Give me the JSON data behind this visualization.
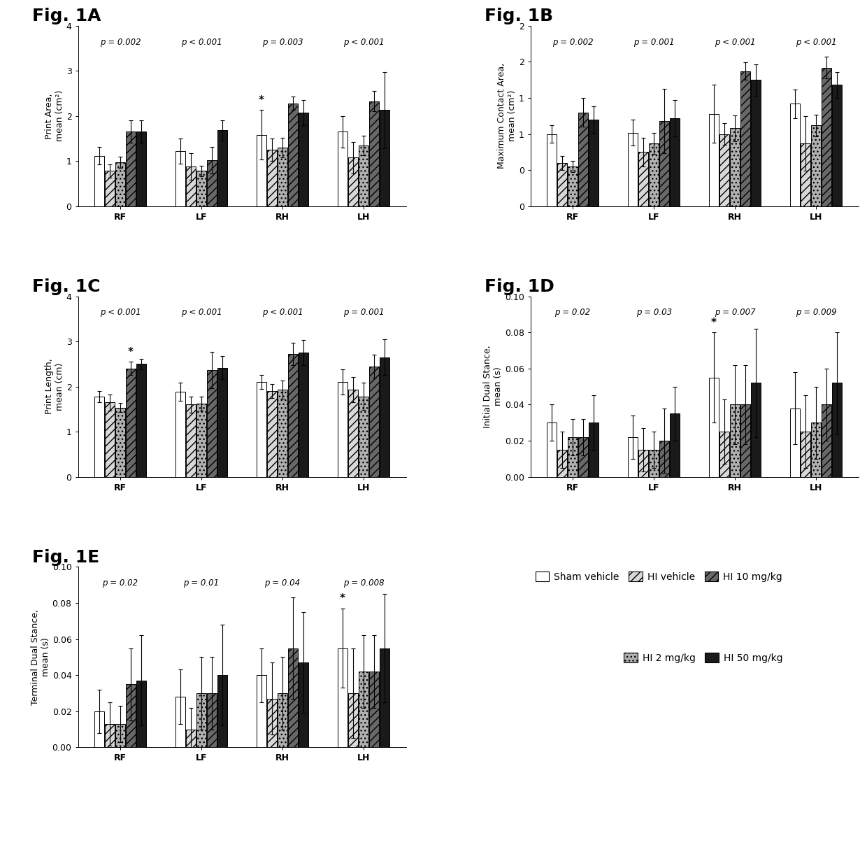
{
  "panels": {
    "1A": {
      "title": "Fig. 1A",
      "ylabel": "Print Area,\nmean (cm²)",
      "ylim": [
        0,
        4
      ],
      "yticks": [
        0,
        1,
        2,
        3,
        4
      ],
      "pvalues": [
        "p = 0.002",
        "p < 0.001",
        "p = 0.003",
        "p < 0.001"
      ],
      "groups": [
        "RF",
        "LF",
        "RH",
        "LH"
      ],
      "means": [
        [
          1.12,
          0.78,
          0.97,
          1.65,
          1.65
        ],
        [
          1.22,
          0.88,
          0.78,
          1.02,
          1.68
        ],
        [
          1.58,
          1.25,
          1.3,
          2.28,
          2.07
        ],
        [
          1.65,
          1.08,
          1.35,
          2.33,
          2.13
        ]
      ],
      "errors": [
        [
          0.2,
          0.15,
          0.12,
          0.25,
          0.25
        ],
        [
          0.28,
          0.3,
          0.12,
          0.3,
          0.22
        ],
        [
          0.55,
          0.25,
          0.22,
          0.15,
          0.28
        ],
        [
          0.35,
          0.35,
          0.22,
          0.22,
          0.85
        ]
      ],
      "star_group_idx": 2,
      "star_bar_idx": 0
    },
    "1B": {
      "title": "Fig. 1B",
      "ylabel": "Maximum Contact Area,\nmean (cm²)",
      "ylim": [
        0,
        2.5
      ],
      "yticks": [
        0.0,
        0.5,
        1.0,
        1.5,
        2.0,
        2.5
      ],
      "pvalues": [
        "p = 0.002",
        "p = 0.001",
        "p < 0.001",
        "p < 0.001"
      ],
      "groups": [
        "RF",
        "LF",
        "RH",
        "LH"
      ],
      "means": [
        [
          1.0,
          0.6,
          0.55,
          1.3,
          1.2
        ],
        [
          1.02,
          0.75,
          0.87,
          1.18,
          1.22
        ],
        [
          1.28,
          1.0,
          1.08,
          1.87,
          1.75
        ],
        [
          1.42,
          0.87,
          1.12,
          1.92,
          1.68
        ]
      ],
      "errors": [
        [
          0.12,
          0.1,
          0.08,
          0.2,
          0.18
        ],
        [
          0.18,
          0.2,
          0.15,
          0.45,
          0.25
        ],
        [
          0.4,
          0.15,
          0.18,
          0.12,
          0.22
        ],
        [
          0.2,
          0.38,
          0.15,
          0.15,
          0.18
        ]
      ],
      "star_group_idx": -1,
      "star_bar_idx": -1
    },
    "1C": {
      "title": "Fig. 1C",
      "ylabel": "Print Length,\nmean (cm)",
      "ylim": [
        0,
        4
      ],
      "yticks": [
        0,
        1,
        2,
        3,
        4
      ],
      "pvalues": [
        "p < 0.001",
        "p < 0.001",
        "p < 0.001",
        "p = 0.001"
      ],
      "groups": [
        "RF",
        "LF",
        "RH",
        "LH"
      ],
      "means": [
        [
          1.78,
          1.65,
          1.53,
          2.4,
          2.5
        ],
        [
          1.88,
          1.6,
          1.62,
          2.37,
          2.42
        ],
        [
          2.1,
          1.9,
          1.93,
          2.72,
          2.75
        ],
        [
          2.1,
          1.93,
          1.78,
          2.45,
          2.65
        ]
      ],
      "errors": [
        [
          0.12,
          0.18,
          0.1,
          0.15,
          0.12
        ],
        [
          0.2,
          0.18,
          0.15,
          0.4,
          0.25
        ],
        [
          0.15,
          0.15,
          0.2,
          0.25,
          0.28
        ],
        [
          0.28,
          0.28,
          0.3,
          0.25,
          0.4
        ]
      ],
      "star_group_idx": 0,
      "star_bar_idx": 3
    },
    "1D": {
      "title": "Fig. 1D",
      "ylabel": "Initial Dual Stance,\nmean (s)",
      "ylim": [
        0,
        0.1
      ],
      "yticks": [
        0.0,
        0.02,
        0.04,
        0.06,
        0.08,
        0.1
      ],
      "pvalues": [
        "p = 0.02",
        "p = 0.03",
        "p = 0.007",
        "p = 0.009"
      ],
      "groups": [
        "RF",
        "LF",
        "RH",
        "LH"
      ],
      "means": [
        [
          0.03,
          0.015,
          0.022,
          0.022,
          0.03
        ],
        [
          0.022,
          0.015,
          0.015,
          0.02,
          0.035
        ],
        [
          0.055,
          0.025,
          0.04,
          0.04,
          0.052
        ],
        [
          0.038,
          0.025,
          0.03,
          0.04,
          0.052
        ]
      ],
      "errors": [
        [
          0.01,
          0.01,
          0.01,
          0.01,
          0.015
        ],
        [
          0.012,
          0.012,
          0.01,
          0.018,
          0.015
        ],
        [
          0.025,
          0.018,
          0.022,
          0.022,
          0.03
        ],
        [
          0.02,
          0.02,
          0.02,
          0.02,
          0.028
        ]
      ],
      "star_group_idx": 2,
      "star_bar_idx": 0
    },
    "1E": {
      "title": "Fig. 1E",
      "ylabel": "Terminal Dual Stance,\nmean (s)",
      "ylim": [
        0,
        0.1
      ],
      "yticks": [
        0.0,
        0.02,
        0.04,
        0.06,
        0.08,
        0.1
      ],
      "pvalues": [
        "p = 0.02",
        "p = 0.01",
        "p = 0.04",
        "p = 0.008"
      ],
      "groups": [
        "RF",
        "LF",
        "RH",
        "LH"
      ],
      "means": [
        [
          0.02,
          0.013,
          0.013,
          0.035,
          0.037
        ],
        [
          0.028,
          0.01,
          0.03,
          0.03,
          0.04
        ],
        [
          0.04,
          0.027,
          0.03,
          0.055,
          0.047
        ],
        [
          0.055,
          0.03,
          0.042,
          0.042,
          0.055
        ]
      ],
      "errors": [
        [
          0.012,
          0.012,
          0.01,
          0.02,
          0.025
        ],
        [
          0.015,
          0.012,
          0.02,
          0.02,
          0.028
        ],
        [
          0.015,
          0.02,
          0.02,
          0.028,
          0.028
        ],
        [
          0.022,
          0.025,
          0.02,
          0.02,
          0.03
        ]
      ],
      "star_group_idx": 3,
      "star_bar_idx": 0
    }
  },
  "bar_colors": [
    "white",
    "#d8d8d8",
    "#b0b0b0",
    "#686868",
    "#1a1a1a"
  ],
  "bar_hatch": [
    null,
    "///",
    "...",
    "///",
    null
  ],
  "bar_edge_colors": [
    "black",
    "black",
    "black",
    "black",
    "black"
  ],
  "legend_labels": [
    "Sham vehicle",
    "HI vehicle",
    "HI 2 mg/kg",
    "HI 10 mg/kg",
    "HI 50 mg/kg"
  ],
  "legend_colors": [
    "white",
    "#d8d8d8",
    "#b0b0b0",
    "#686868",
    "#1a1a1a"
  ],
  "legend_hatch": [
    null,
    "///",
    "...",
    "///",
    null
  ],
  "background_color": "white",
  "fig_label_fontsize": 18,
  "axis_label_fontsize": 9,
  "tick_fontsize": 9,
  "pvalue_fontsize": 8.5
}
